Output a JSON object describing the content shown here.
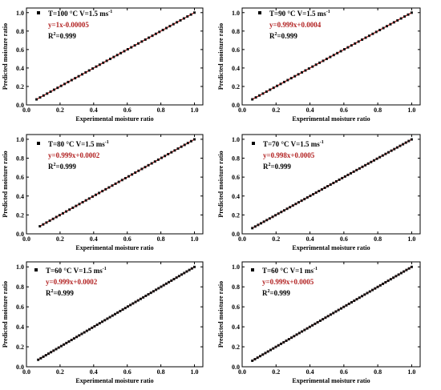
{
  "chart_data": [
    {
      "type": "scatter",
      "label": "T=100 °C  V=1.5 ms",
      "label_sup": "-1",
      "equation": "y=1x-0.00005",
      "r2_prefix": "R",
      "r2_sup": "2",
      "r2_value": "=0.999",
      "xlabel": "Experimental moisture ratio",
      "ylabel": "Predicted moisture ratio",
      "xlim": [
        0,
        1.05
      ],
      "ylim": [
        0,
        1.05
      ],
      "x_ticks": [
        "0.0",
        "0.2",
        "0.4",
        "0.6",
        "0.8",
        "1.0"
      ],
      "y_ticks": [
        "0.0",
        "0.2",
        "0.4",
        "0.6",
        "0.8",
        "1.0"
      ],
      "slope": 1.0,
      "intercept": -5e-05,
      "x_range": [
        0.06,
        1.0
      ],
      "n_points": 46,
      "point_color": "#111111",
      "fit_color": "#e21a1a"
    },
    {
      "type": "scatter",
      "label": "T=90 °C  V=1.5 ms",
      "label_sup": "-1",
      "equation": "y=0.999x+0.0004",
      "r2_prefix": "R",
      "r2_sup": "2",
      "r2_value": "=0.999",
      "xlabel": "Experimental moisture ratio",
      "ylabel": "Predicted moisture ratio",
      "xlim": [
        0,
        1.05
      ],
      "ylim": [
        0,
        1.05
      ],
      "x_ticks": [
        "0.0",
        "0.2",
        "0.4",
        "0.6",
        "0.8",
        "1.0"
      ],
      "y_ticks": [
        "0.0",
        "0.2",
        "0.4",
        "0.6",
        "0.8",
        "1.0"
      ],
      "slope": 0.999,
      "intercept": 0.0004,
      "x_range": [
        0.06,
        1.0
      ],
      "n_points": 46,
      "point_color": "#111111",
      "fit_color": "#e21a1a"
    },
    {
      "type": "scatter",
      "label": "T=80 °C  V=1.5 ms",
      "label_sup": "-1",
      "equation": "y=0.999x+0.0002",
      "r2_prefix": "R",
      "r2_sup": "2",
      "r2_value": "=0.999",
      "xlabel": "Experimental moisture ratio",
      "ylabel": "Predicted moisture ratio",
      "xlim": [
        0,
        1.05
      ],
      "ylim": [
        0,
        1.05
      ],
      "x_ticks": [
        "0.0",
        "0.2",
        "0.4",
        "0.6",
        "0.8",
        "1.0"
      ],
      "y_ticks": [
        "0.0",
        "0.2",
        "0.4",
        "0.6",
        "0.8",
        "1.0"
      ],
      "slope": 0.999,
      "intercept": 0.0002,
      "x_range": [
        0.08,
        1.0
      ],
      "n_points": 48,
      "point_color": "#111111",
      "fit_color": "#e21a1a"
    },
    {
      "type": "scatter",
      "label": "T=70 °C  V=1.5 ms",
      "label_sup": "-1",
      "equation": "y=0.998x+0.0005",
      "r2_prefix": "R",
      "r2_sup": "2",
      "r2_value": "=0.999",
      "xlabel": "Experimental moisture ratio",
      "ylabel": "Predicted moisture ratio",
      "xlim": [
        0,
        1.05
      ],
      "ylim": [
        0,
        1.05
      ],
      "x_ticks": [
        "0.0",
        "0.2",
        "0.4",
        "0.6",
        "0.8",
        "1.0"
      ],
      "y_ticks": [
        "0.0",
        "0.2",
        "0.4",
        "0.6",
        "0.8",
        "1.0"
      ],
      "slope": 0.998,
      "intercept": 0.0005,
      "x_range": [
        0.06,
        1.0
      ],
      "n_points": 56,
      "point_color": "#111111",
      "fit_color": "#e21a1a"
    },
    {
      "type": "scatter",
      "label": "T=60 °C  V=1.5 ms",
      "label_sup": "-1",
      "equation": "y=0.999x+0.0002",
      "r2_prefix": "R",
      "r2_sup": "2",
      "r2_value": "=0.999",
      "xlabel": "Experimental moisture ratio",
      "ylabel": "Predicted moisture ratio",
      "xlim": [
        0,
        1.05
      ],
      "ylim": [
        0,
        1.05
      ],
      "x_ticks": [
        "0.0",
        "0.2",
        "0.4",
        "0.6",
        "0.8",
        "1.0"
      ],
      "y_ticks": [
        "0.0",
        "0.2",
        "0.4",
        "0.6",
        "0.8",
        "1.0"
      ],
      "slope": 0.999,
      "intercept": 0.0002,
      "x_range": [
        0.07,
        1.0
      ],
      "n_points": 62,
      "point_color": "#111111",
      "fit_color": "#e21a1a"
    },
    {
      "type": "scatter",
      "label": "T=60 °C  V=1 ms",
      "label_sup": "-1",
      "equation": "y=0.999x+0.0005",
      "r2_prefix": "R",
      "r2_sup": "2",
      "r2_value": "=0.999",
      "xlabel": "Experimental moisture ratio",
      "ylabel": "Predicted moisture ratio",
      "xlim": [
        0,
        1.05
      ],
      "ylim": [
        0,
        1.05
      ],
      "x_ticks": [
        "0.0",
        "0.2",
        "0.4",
        "0.6",
        "0.8",
        "1.0"
      ],
      "y_ticks": [
        "0.0",
        "0.2",
        "0.4",
        "0.6",
        "0.8",
        "1.0"
      ],
      "slope": 0.999,
      "intercept": 0.0005,
      "x_range": [
        0.06,
        1.0
      ],
      "n_points": 62,
      "point_color": "#111111",
      "fit_color": "#e21a1a"
    }
  ]
}
